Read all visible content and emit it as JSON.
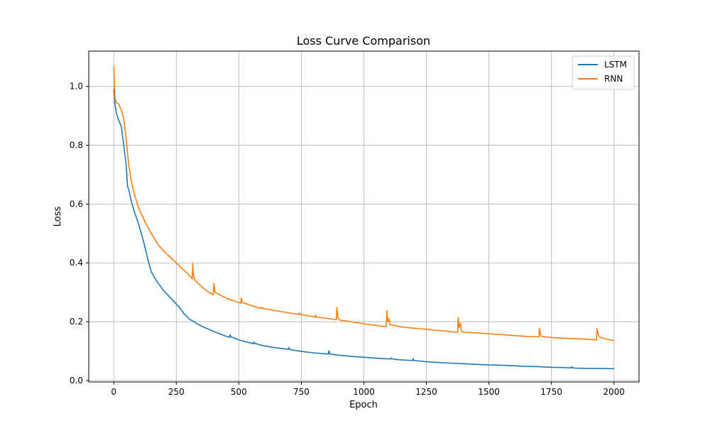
{
  "chart_data": {
    "type": "line",
    "title": "Loss Curve Comparison",
    "xlabel": "Epoch",
    "ylabel": "Loss",
    "xlim": [
      -100,
      2100
    ],
    "ylim": [
      -0.005,
      1.12
    ],
    "xticks": [
      0,
      250,
      500,
      750,
      1000,
      1250,
      1500,
      1750,
      2000
    ],
    "yticks": [
      0.0,
      0.2,
      0.4,
      0.6,
      0.8,
      1.0
    ],
    "xtick_labels": [
      "0",
      "250",
      "500",
      "750",
      "1000",
      "1250",
      "1500",
      "1750",
      "2000"
    ],
    "ytick_labels": [
      "0.0",
      "0.2",
      "0.4",
      "0.6",
      "0.8",
      "1.0"
    ],
    "grid": true,
    "legend_position": "top-right",
    "series": [
      {
        "name": "LSTM",
        "color": "#1f77b4",
        "points": [
          [
            0,
            0.99
          ],
          [
            5,
            0.94
          ],
          [
            10,
            0.91
          ],
          [
            20,
            0.885
          ],
          [
            30,
            0.865
          ],
          [
            40,
            0.8
          ],
          [
            50,
            0.73
          ],
          [
            55,
            0.66
          ],
          [
            60,
            0.65
          ],
          [
            70,
            0.61
          ],
          [
            80,
            0.58
          ],
          [
            100,
            0.53
          ],
          [
            120,
            0.47
          ],
          [
            140,
            0.4
          ],
          [
            150,
            0.37
          ],
          [
            170,
            0.34
          ],
          [
            200,
            0.305
          ],
          [
            250,
            0.26
          ],
          [
            275,
            0.235
          ],
          [
            280,
            0.227
          ],
          [
            285,
            0.225
          ],
          [
            300,
            0.21
          ],
          [
            350,
            0.185
          ],
          [
            400,
            0.167
          ],
          [
            450,
            0.15
          ],
          [
            463,
            0.147
          ],
          [
            465,
            0.155
          ],
          [
            470,
            0.148
          ],
          [
            500,
            0.138
          ],
          [
            550,
            0.127
          ],
          [
            558,
            0.125
          ],
          [
            560,
            0.131
          ],
          [
            565,
            0.126
          ],
          [
            600,
            0.118
          ],
          [
            650,
            0.111
          ],
          [
            698,
            0.106
          ],
          [
            700,
            0.112
          ],
          [
            705,
            0.105
          ],
          [
            750,
            0.099
          ],
          [
            800,
            0.094
          ],
          [
            858,
            0.09
          ],
          [
            860,
            0.101
          ],
          [
            865,
            0.09
          ],
          [
            900,
            0.086
          ],
          [
            950,
            0.082
          ],
          [
            1000,
            0.079
          ],
          [
            1050,
            0.076
          ],
          [
            1108,
            0.073
          ],
          [
            1110,
            0.077
          ],
          [
            1115,
            0.073
          ],
          [
            1150,
            0.07
          ],
          [
            1195,
            0.068
          ],
          [
            1197,
            0.074
          ],
          [
            1200,
            0.068
          ],
          [
            1250,
            0.064
          ],
          [
            1300,
            0.061
          ],
          [
            1350,
            0.059
          ],
          [
            1400,
            0.057
          ],
          [
            1450,
            0.055
          ],
          [
            1500,
            0.053
          ],
          [
            1550,
            0.052
          ],
          [
            1600,
            0.05
          ],
          [
            1650,
            0.048
          ],
          [
            1700,
            0.047
          ],
          [
            1750,
            0.045
          ],
          [
            1800,
            0.044
          ],
          [
            1830,
            0.043
          ],
          [
            1832,
            0.047
          ],
          [
            1835,
            0.043
          ],
          [
            1850,
            0.042
          ],
          [
            1900,
            0.041
          ],
          [
            1950,
            0.041
          ],
          [
            2000,
            0.04
          ]
        ]
      },
      {
        "name": "RNN",
        "color": "#ff7f0e",
        "points": [
          [
            0,
            1.07
          ],
          [
            5,
            0.96
          ],
          [
            10,
            0.945
          ],
          [
            20,
            0.94
          ],
          [
            30,
            0.92
          ],
          [
            40,
            0.89
          ],
          [
            50,
            0.82
          ],
          [
            60,
            0.73
          ],
          [
            70,
            0.68
          ],
          [
            80,
            0.64
          ],
          [
            100,
            0.585
          ],
          [
            125,
            0.54
          ],
          [
            150,
            0.5
          ],
          [
            175,
            0.465
          ],
          [
            200,
            0.44
          ],
          [
            250,
            0.4
          ],
          [
            280,
            0.375
          ],
          [
            300,
            0.36
          ],
          [
            310,
            0.35
          ],
          [
            314,
            0.345
          ],
          [
            316,
            0.398
          ],
          [
            318,
            0.36
          ],
          [
            325,
            0.34
          ],
          [
            350,
            0.32
          ],
          [
            380,
            0.3
          ],
          [
            398,
            0.292
          ],
          [
            400,
            0.33
          ],
          [
            405,
            0.3
          ],
          [
            450,
            0.28
          ],
          [
            500,
            0.265
          ],
          [
            508,
            0.262
          ],
          [
            510,
            0.28
          ],
          [
            515,
            0.265
          ],
          [
            550,
            0.255
          ],
          [
            588,
            0.245
          ],
          [
            590,
            0.25
          ],
          [
            595,
            0.245
          ],
          [
            650,
            0.237
          ],
          [
            700,
            0.23
          ],
          [
            740,
            0.225
          ],
          [
            742,
            0.23
          ],
          [
            745,
            0.225
          ],
          [
            800,
            0.217
          ],
          [
            805,
            0.215
          ],
          [
            807,
            0.222
          ],
          [
            812,
            0.215
          ],
          [
            850,
            0.212
          ],
          [
            890,
            0.207
          ],
          [
            892,
            0.248
          ],
          [
            896,
            0.215
          ],
          [
            905,
            0.205
          ],
          [
            950,
            0.2
          ],
          [
            1000,
            0.193
          ],
          [
            1050,
            0.187
          ],
          [
            1090,
            0.183
          ],
          [
            1092,
            0.238
          ],
          [
            1096,
            0.2
          ],
          [
            1100,
            0.21
          ],
          [
            1105,
            0.19
          ],
          [
            1150,
            0.182
          ],
          [
            1200,
            0.178
          ],
          [
            1250,
            0.174
          ],
          [
            1300,
            0.17
          ],
          [
            1350,
            0.166
          ],
          [
            1375,
            0.164
          ],
          [
            1377,
            0.215
          ],
          [
            1381,
            0.18
          ],
          [
            1386,
            0.195
          ],
          [
            1390,
            0.168
          ],
          [
            1400,
            0.164
          ],
          [
            1450,
            0.162
          ],
          [
            1500,
            0.159
          ],
          [
            1550,
            0.156
          ],
          [
            1600,
            0.153
          ],
          [
            1650,
            0.15
          ],
          [
            1700,
            0.148
          ],
          [
            1702,
            0.178
          ],
          [
            1706,
            0.158
          ],
          [
            1710,
            0.15
          ],
          [
            1750,
            0.146
          ],
          [
            1800,
            0.144
          ],
          [
            1850,
            0.142
          ],
          [
            1900,
            0.14
          ],
          [
            1930,
            0.138
          ],
          [
            1932,
            0.177
          ],
          [
            1936,
            0.16
          ],
          [
            1940,
            0.15
          ],
          [
            1950,
            0.145
          ],
          [
            2000,
            0.135
          ]
        ]
      }
    ]
  }
}
